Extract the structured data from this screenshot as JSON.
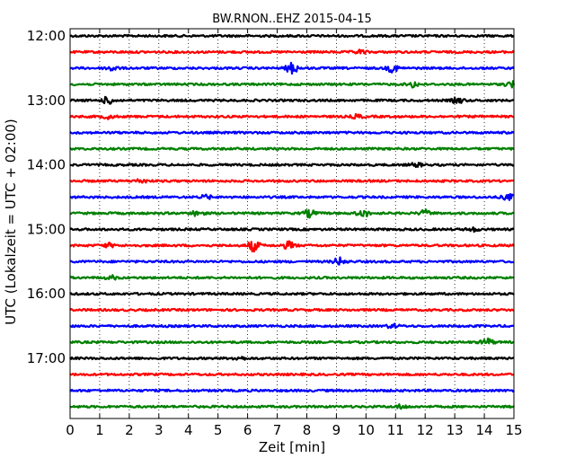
{
  "chart_data": {
    "type": "line",
    "title": "BW.RNON..EHZ 2015-04-15",
    "xlabel": "Zeit  [min]",
    "ylabel": "UTC (Lokalzeit = UTC + 02:00)",
    "xlim": [
      0,
      15
    ],
    "x_ticks": [
      0,
      1,
      2,
      3,
      4,
      5,
      6,
      7,
      8,
      9,
      10,
      11,
      12,
      13,
      14,
      15
    ],
    "x_tick_labels": [
      "0",
      "1",
      "2",
      "3",
      "4",
      "5",
      "6",
      "7",
      "8",
      "9",
      "10",
      "11",
      "12",
      "13",
      "14",
      "15"
    ],
    "y_tick_labels": [
      "12:00",
      "13:00",
      "14:00",
      "15:00",
      "16:00",
      "17:00"
    ],
    "grid": true,
    "color_cycle": [
      "#000000",
      "#ff0000",
      "#0000ff",
      "#008000"
    ],
    "traces": [
      {
        "start": "12:00",
        "color": "#000000",
        "events": []
      },
      {
        "start": "12:15",
        "color": "#ff0000",
        "events": [
          {
            "t": 9.8,
            "amp": 2
          }
        ]
      },
      {
        "start": "12:30",
        "color": "#0000ff",
        "events": [
          {
            "t": 1.4,
            "amp": 3
          },
          {
            "t": 7.5,
            "amp": 6
          },
          {
            "t": 10.9,
            "amp": 4
          }
        ]
      },
      {
        "start": "12:45",
        "color": "#008000",
        "events": [
          {
            "t": 11.6,
            "amp": 3
          },
          {
            "t": 14.9,
            "amp": 3
          }
        ]
      },
      {
        "start": "13:00",
        "color": "#000000",
        "events": [
          {
            "t": 1.3,
            "amp": 4
          },
          {
            "t": 13.1,
            "amp": 3
          }
        ]
      },
      {
        "start": "13:15",
        "color": "#ff0000",
        "events": [
          {
            "t": 1.3,
            "amp": 2
          },
          {
            "t": 9.7,
            "amp": 2
          }
        ]
      },
      {
        "start": "13:30",
        "color": "#0000ff",
        "events": []
      },
      {
        "start": "13:45",
        "color": "#008000",
        "events": []
      },
      {
        "start": "14:00",
        "color": "#000000",
        "events": [
          {
            "t": 11.7,
            "amp": 2
          }
        ]
      },
      {
        "start": "14:15",
        "color": "#ff0000",
        "events": [
          {
            "t": 2.4,
            "amp": 2
          }
        ]
      },
      {
        "start": "14:30",
        "color": "#0000ff",
        "events": [
          {
            "t": 4.6,
            "amp": 2
          },
          {
            "t": 14.8,
            "amp": 3
          }
        ]
      },
      {
        "start": "14:45",
        "color": "#008000",
        "events": [
          {
            "t": 4.3,
            "amp": 3
          },
          {
            "t": 8.1,
            "amp": 4
          },
          {
            "t": 9.9,
            "amp": 4
          },
          {
            "t": 12.0,
            "amp": 3
          }
        ]
      },
      {
        "start": "15:00",
        "color": "#000000",
        "events": [
          {
            "t": 13.6,
            "amp": 2
          }
        ]
      },
      {
        "start": "15:15",
        "color": "#ff0000",
        "events": [
          {
            "t": 1.3,
            "amp": 2
          },
          {
            "t": 6.2,
            "amp": 6
          },
          {
            "t": 7.4,
            "amp": 4
          }
        ]
      },
      {
        "start": "15:30",
        "color": "#0000ff",
        "events": [
          {
            "t": 9.1,
            "amp": 4
          }
        ]
      },
      {
        "start": "15:45",
        "color": "#008000",
        "events": [
          {
            "t": 1.4,
            "amp": 2
          }
        ]
      },
      {
        "start": "16:00",
        "color": "#000000",
        "events": []
      },
      {
        "start": "16:15",
        "color": "#ff0000",
        "events": []
      },
      {
        "start": "16:30",
        "color": "#0000ff",
        "events": [
          {
            "t": 10.9,
            "amp": 2
          }
        ]
      },
      {
        "start": "16:45",
        "color": "#008000",
        "events": [
          {
            "t": 14.1,
            "amp": 4
          }
        ]
      },
      {
        "start": "17:00",
        "color": "#000000",
        "events": [
          {
            "t": 5.7,
            "amp": 2
          }
        ]
      },
      {
        "start": "17:15",
        "color": "#ff0000",
        "events": []
      },
      {
        "start": "17:30",
        "color": "#0000ff",
        "events": []
      },
      {
        "start": "17:45",
        "color": "#008000",
        "events": [
          {
            "t": 11.2,
            "amp": 2
          }
        ]
      }
    ]
  }
}
